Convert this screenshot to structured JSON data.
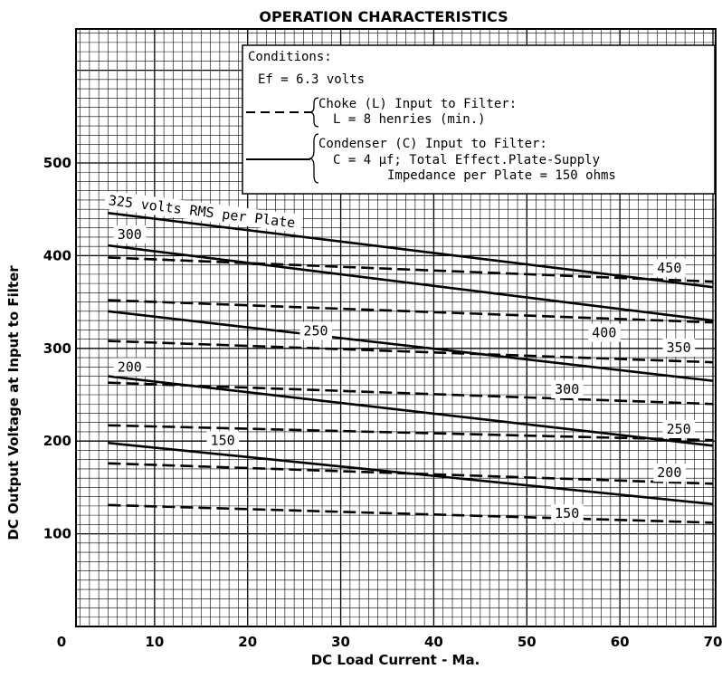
{
  "chart_data": {
    "type": "line",
    "title": "OPERATION CHARACTERISTICS",
    "xlabel": "DC Load Current - Ma.",
    "ylabel": "DC Output Voltage at Input to Filter",
    "xlim": [
      0,
      70
    ],
    "ylim": [
      0,
      600
    ],
    "x_ticks": [
      "0",
      "10",
      "20",
      "30",
      "40",
      "50",
      "60",
      "70"
    ],
    "y_ticks": [
      "100",
      "200",
      "300",
      "400",
      "500"
    ],
    "grid": true,
    "legend": {
      "heading": "Conditions:",
      "ef": "Ef = 6.3 volts",
      "choke_line1": "Choke (L) Input to Filter:",
      "choke_line2": "L = 8 henries (min.)",
      "cond_line1": "Condenser (C) Input to Filter:",
      "cond_line2": "C = 4 μf; Total Effect.Plate-Supply",
      "cond_line3": "Impedance per Plate = 150 ohms"
    },
    "series": [
      {
        "name": "325 volts RMS per Plate",
        "style": "solid",
        "x": [
          5,
          70
        ],
        "y": [
          446,
          366
        ]
      },
      {
        "name": "300",
        "style": "solid",
        "x": [
          5,
          70
        ],
        "y": [
          411,
          330
        ]
      },
      {
        "name": "250",
        "style": "solid",
        "x": [
          5,
          70
        ],
        "y": [
          340,
          265
        ]
      },
      {
        "name": "200",
        "style": "solid",
        "x": [
          5,
          70
        ],
        "y": [
          270,
          195
        ]
      },
      {
        "name": "150",
        "style": "solid",
        "x": [
          5,
          70
        ],
        "y": [
          198,
          132
        ]
      },
      {
        "name": "450",
        "style": "dashed",
        "x": [
          5,
          70
        ],
        "y": [
          398,
          372
        ]
      },
      {
        "name": "400",
        "style": "dashed",
        "x": [
          5,
          70
        ],
        "y": [
          352,
          328
        ]
      },
      {
        "name": "350",
        "style": "dashed",
        "x": [
          5,
          70
        ],
        "y": [
          308,
          285
        ]
      },
      {
        "name": "300",
        "style": "dashed",
        "x": [
          5,
          70
        ],
        "y": [
          263,
          240
        ]
      },
      {
        "name": "250",
        "style": "dashed",
        "x": [
          5,
          70
        ],
        "y": [
          217,
          201
        ]
      },
      {
        "name": "200",
        "style": "dashed",
        "x": [
          5,
          70
        ],
        "y": [
          176,
          154
        ]
      },
      {
        "name": "150",
        "style": "dashed",
        "x": [
          5,
          70
        ],
        "y": [
          131,
          112
        ]
      }
    ],
    "curve_labels": [
      {
        "text": "325 volts RMS per Plate",
        "x": 5,
        "y": 455
      },
      {
        "text": "300",
        "x": 6,
        "y": 418
      },
      {
        "text": "250",
        "x": 26,
        "y": 314
      },
      {
        "text": "200",
        "x": 6,
        "y": 275
      },
      {
        "text": "150",
        "x": 16,
        "y": 196
      },
      {
        "text": "450",
        "x": 64,
        "y": 382
      },
      {
        "text": "400",
        "x": 57,
        "y": 312
      },
      {
        "text": "350",
        "x": 65,
        "y": 296
      },
      {
        "text": "300",
        "x": 53,
        "y": 251
      },
      {
        "text": "250",
        "x": 65,
        "y": 208
      },
      {
        "text": "200",
        "x": 64,
        "y": 161
      },
      {
        "text": "150",
        "x": 53,
        "y": 117
      }
    ]
  }
}
